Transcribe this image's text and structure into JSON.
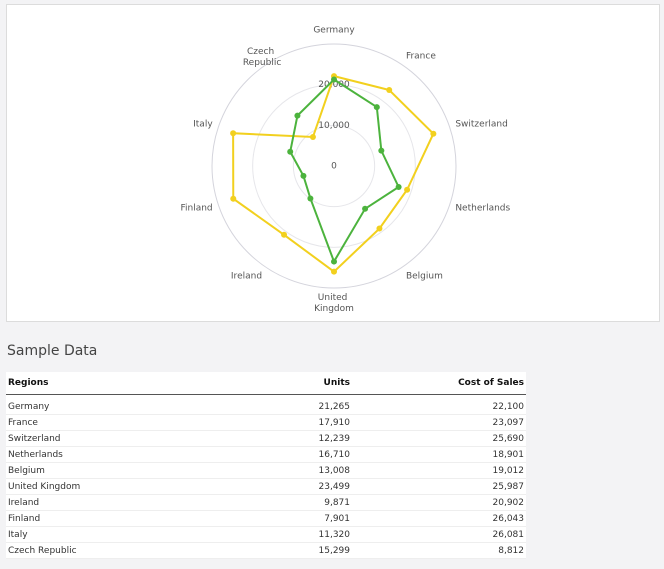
{
  "chart_data": {
    "type": "radar",
    "categories": [
      "Germany",
      "France",
      "Switzerland",
      "Netherlands",
      "Belgium",
      "United Kingdom",
      "Ireland",
      "Finland",
      "Italy",
      "Czech Republic"
    ],
    "series": [
      {
        "color": "#f2d01e",
        "values": [
          22100,
          23097,
          25690,
          18901,
          19012,
          25987,
          20902,
          26043,
          26081,
          8812
        ]
      },
      {
        "color": "#4cb33d",
        "values": [
          21265,
          17910,
          12239,
          16710,
          13008,
          23499,
          9871,
          7901,
          11320,
          15299
        ]
      }
    ],
    "ylim": [
      0,
      30000
    ],
    "yticks": [
      0,
      {
        "value": 10000,
        "label": "10,000"
      },
      {
        "value": 20000,
        "label": "20,000"
      }
    ],
    "grid": true
  },
  "table": {
    "title": "Sample Data",
    "columns": [
      "Regions",
      "Units",
      "Cost of Sales"
    ],
    "rows": [
      [
        "Germany",
        "21,265",
        "22,100"
      ],
      [
        "France",
        "17,910",
        "23,097"
      ],
      [
        "Switzerland",
        "12,239",
        "25,690"
      ],
      [
        "Netherlands",
        "16,710",
        "18,901"
      ],
      [
        "Belgium",
        "13,008",
        "19,012"
      ],
      [
        "United Kingdom",
        "23,499",
        "25,987"
      ],
      [
        "Ireland",
        "9,871",
        "20,902"
      ],
      [
        "Finland",
        "7,901",
        "26,043"
      ],
      [
        "Italy",
        "11,320",
        "26,081"
      ],
      [
        "Czech Republic",
        "15,299",
        "8,812"
      ]
    ]
  }
}
